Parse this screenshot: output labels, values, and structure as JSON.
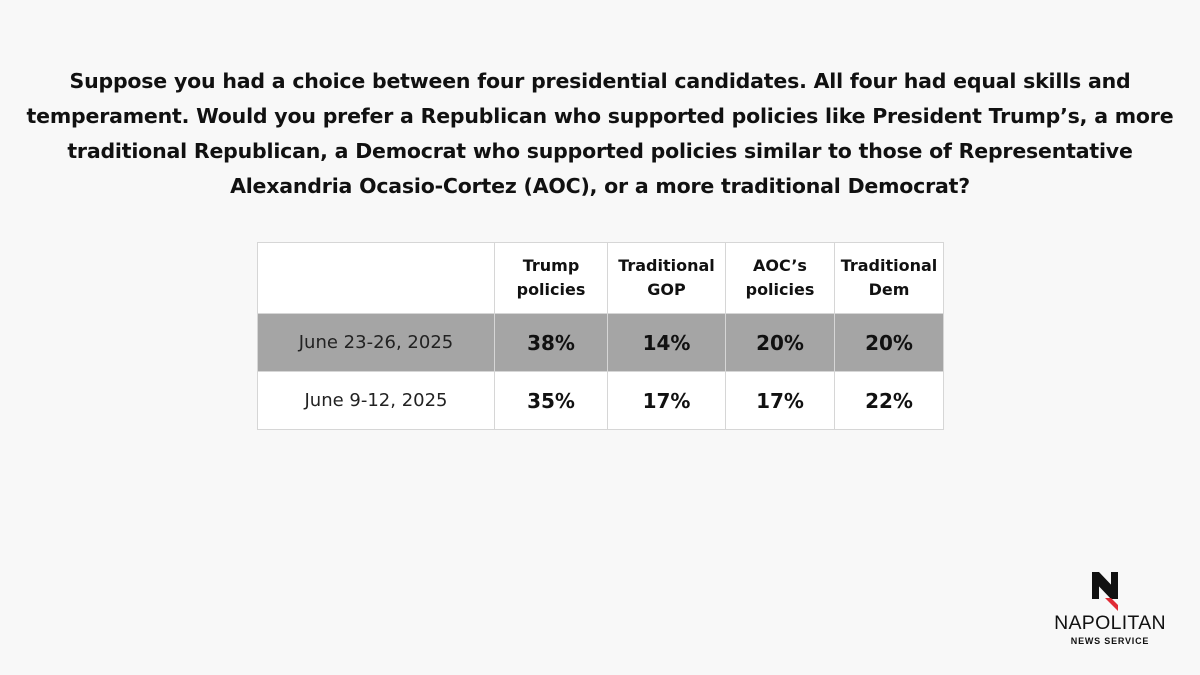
{
  "question": "Suppose you had a choice between four presidential candidates. All four had equal skills and temperament. Would you prefer a Republican who supported policies like President Trump’s, a more traditional Republican, a Democrat who supported policies similar to those of Representative Alexandria Ocasio-Cortez (AOC), or a more traditional Democrat?",
  "colors": {
    "background": "#f8f8f8",
    "highlight_row": "#a5a5a5",
    "border": "#d6d6d6",
    "logo_accent": "#e02b35"
  },
  "chart_data": {
    "type": "table",
    "columns": [
      "",
      "Trump policies",
      "Traditional GOP",
      "AOC’s policies",
      "Traditional Dem"
    ],
    "header_lines": [
      [
        "Trump",
        "policies"
      ],
      [
        "Traditional",
        "GOP"
      ],
      [
        "AOC’s",
        "policies"
      ],
      [
        "Traditional",
        "Dem"
      ]
    ],
    "rows": [
      {
        "label": "June 23-26, 2025",
        "values": [
          "38%",
          "14%",
          "20%",
          "20%"
        ],
        "highlighted": true
      },
      {
        "label": "June 9-12, 2025",
        "values": [
          "35%",
          "17%",
          "17%",
          "22%"
        ],
        "highlighted": false
      }
    ]
  },
  "logo": {
    "icon": "napolitan-n-logo-icon",
    "name": "NAPOLITAN",
    "subtitle": "NEWS SERVICE"
  }
}
